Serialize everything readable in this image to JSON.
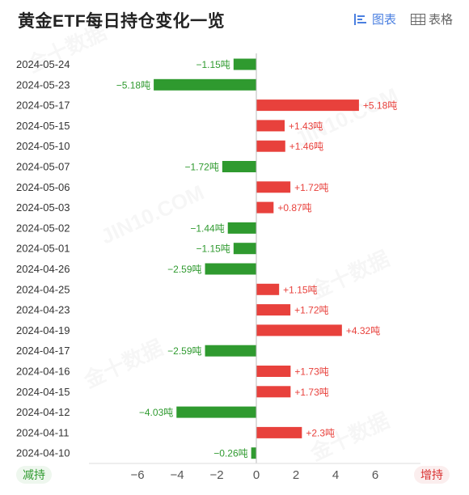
{
  "header": {
    "title": "黄金ETF每日持仓变化一览",
    "tab_chart_label": "图表",
    "tab_table_label": "表格"
  },
  "colors": {
    "positive": "#e8413c",
    "negative": "#2f9a2f",
    "axis": "#555555",
    "accent": "#4a7fe0"
  },
  "legend": {
    "reduce_label": "减持",
    "increase_label": "增持"
  },
  "chart_data": {
    "type": "bar",
    "orientation": "horizontal",
    "title": "黄金ETF每日持仓变化一览",
    "unit": "吨",
    "xlim": [
      -7,
      7
    ],
    "xticks": [
      -6,
      -4,
      -2,
      0,
      2,
      4,
      6
    ],
    "xtick_labels": [
      "−6",
      "−4",
      "−2",
      "0",
      "2",
      "4",
      "6"
    ],
    "categories": [
      "2024-05-24",
      "2024-05-23",
      "2024-05-17",
      "2024-05-15",
      "2024-05-10",
      "2024-05-07",
      "2024-05-06",
      "2024-05-03",
      "2024-05-02",
      "2024-05-01",
      "2024-04-26",
      "2024-04-25",
      "2024-04-23",
      "2024-04-19",
      "2024-04-17",
      "2024-04-16",
      "2024-04-15",
      "2024-04-12",
      "2024-04-11",
      "2024-04-10"
    ],
    "values": [
      -1.15,
      -5.18,
      5.18,
      1.43,
      1.46,
      -1.72,
      1.72,
      0.87,
      -1.44,
      -1.15,
      -2.59,
      1.15,
      1.72,
      4.32,
      -2.59,
      1.73,
      1.73,
      -4.03,
      2.3,
      -0.26
    ],
    "data_labels": [
      "−1.15吨",
      "−5.18吨",
      "+5.18吨",
      "+1.43吨",
      "+1.46吨",
      "−1.72吨",
      "+1.72吨",
      "+0.87吨",
      "−1.44吨",
      "−1.15吨",
      "−2.59吨",
      "+1.15吨",
      "+1.72吨",
      "+4.32吨",
      "−2.59吨",
      "+1.73吨",
      "+1.73吨",
      "−4.03吨",
      "+2.3吨",
      "−0.26吨"
    ],
    "grid": false,
    "legend": "bottom"
  }
}
